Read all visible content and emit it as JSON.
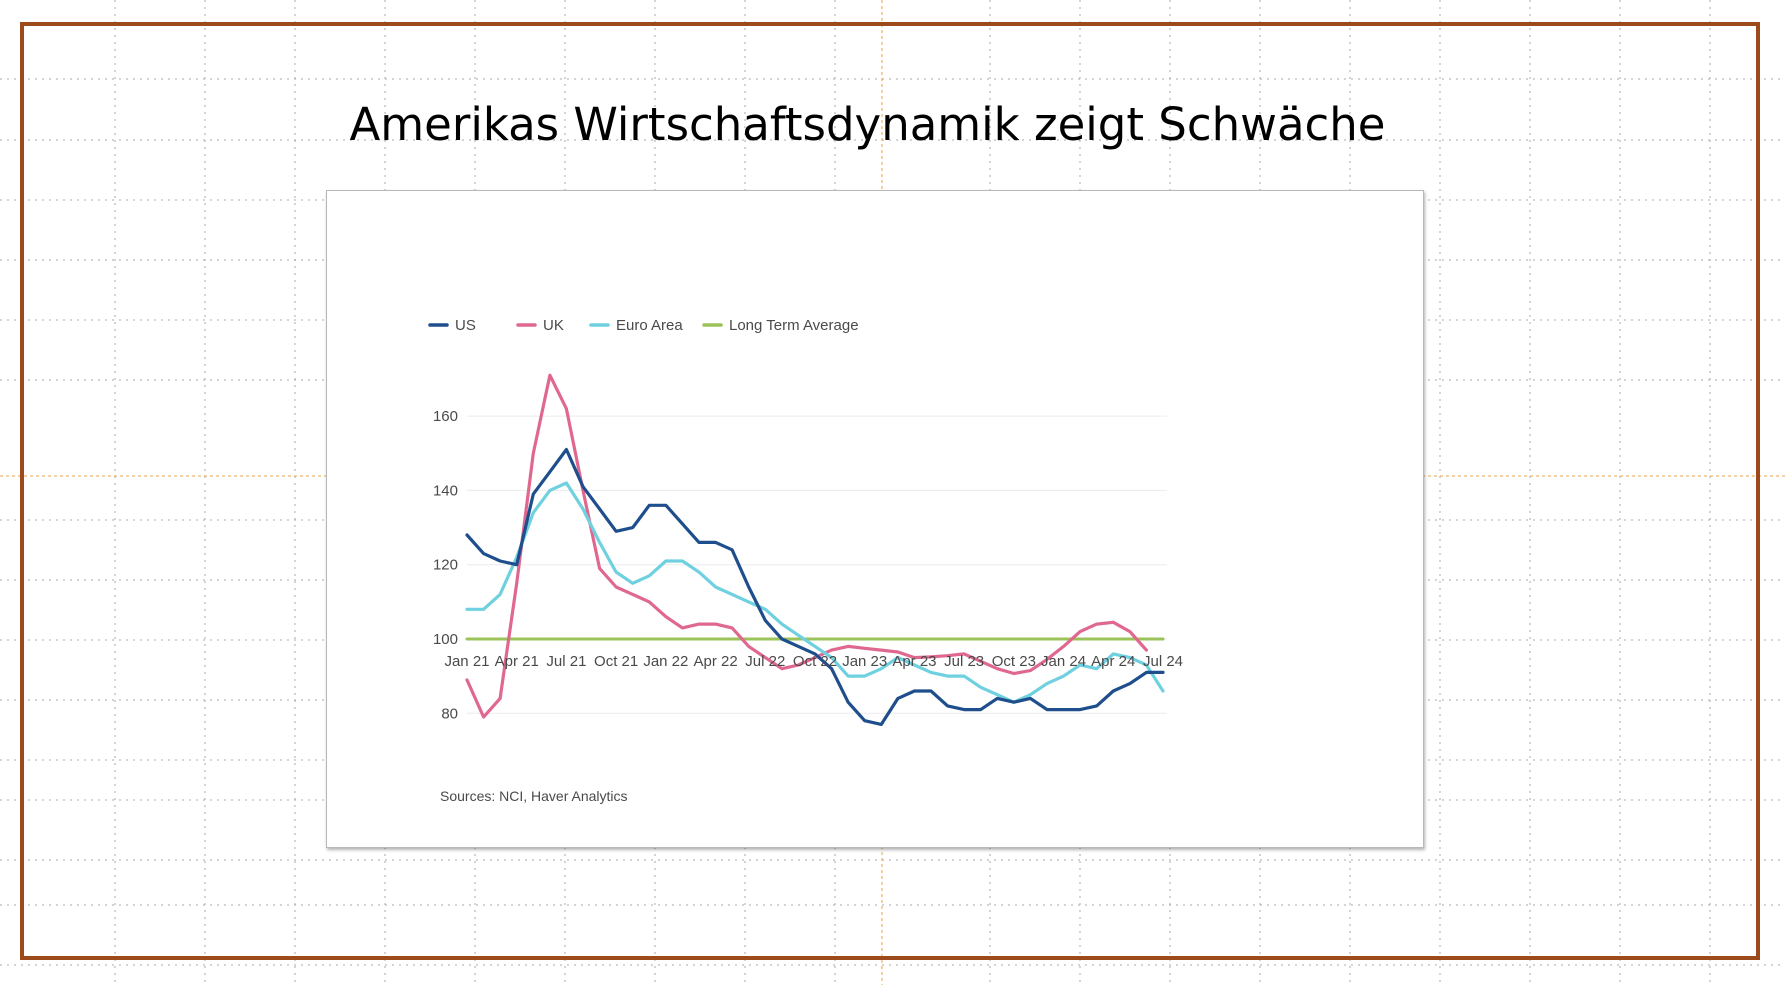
{
  "slide": {
    "title": "Amerikas Wirtschaftsdynamik zeigt Schwäche",
    "frame_color": "#9c4a1c"
  },
  "chart_data": {
    "type": "line",
    "title": "",
    "xlabel": "",
    "ylabel": "",
    "source": "Sources: NCI, Haver Analytics",
    "ylim": [
      75,
      170
    ],
    "yticks": [
      80,
      100,
      120,
      140,
      160
    ],
    "grid": "horizontal",
    "legend_position": "top-left",
    "x": [
      "Jan 21",
      "Feb 21",
      "Mar 21",
      "Apr 21",
      "May 21",
      "Jun 21",
      "Jul 21",
      "Aug 21",
      "Sep 21",
      "Oct 21",
      "Nov 21",
      "Dec 21",
      "Jan 22",
      "Feb 22",
      "Mar 22",
      "Apr 22",
      "May 22",
      "Jun 22",
      "Jul 22",
      "Aug 22",
      "Sep 22",
      "Oct 22",
      "Nov 22",
      "Dec 22",
      "Jan 23",
      "Feb 23",
      "Mar 23",
      "Apr 23",
      "May 23",
      "Jun 23",
      "Jul 23",
      "Aug 23",
      "Sep 23",
      "Oct 23",
      "Nov 23",
      "Dec 23",
      "Jan 24",
      "Feb 24",
      "Mar 24",
      "Apr 24",
      "May 24",
      "Jun 24",
      "Jul 24"
    ],
    "xticks": [
      "Jan 21",
      "Apr 21",
      "Jul 21",
      "Oct 21",
      "Jan 22",
      "Apr 22",
      "Jul 22",
      "Oct 22",
      "Jan 23",
      "Apr 23",
      "Jul 23",
      "Oct 23",
      "Jan 24",
      "Apr 24",
      "Jul 24"
    ],
    "series": [
      {
        "name": "US",
        "color": "#1f4e8c",
        "values": [
          128,
          123,
          121,
          120,
          139,
          145,
          151,
          141,
          135,
          129,
          130,
          136,
          136,
          131,
          126,
          126,
          124,
          114,
          105,
          100,
          98,
          96,
          92,
          83,
          78,
          77,
          84,
          86,
          86,
          82,
          81,
          81,
          84,
          83,
          84,
          81,
          81,
          81,
          82,
          86,
          88,
          91,
          91
        ]
      },
      {
        "name": "UK",
        "color": "#e0688f",
        "values": [
          89,
          79,
          84,
          115,
          150,
          171,
          162,
          140,
          119,
          114,
          112,
          110,
          106,
          103,
          104,
          104,
          103,
          98,
          95,
          92,
          93,
          95,
          97,
          98,
          97.5,
          97,
          96.5,
          95,
          95.2,
          95.5,
          96,
          94,
          92,
          90.7,
          91.5,
          94.5,
          98,
          102,
          104,
          104.5,
          102,
          97,
          null
        ]
      },
      {
        "name": "Euro Area",
        "color": "#6fd0e0",
        "values": [
          108,
          108,
          112,
          122,
          134,
          140,
          142,
          135,
          126,
          118,
          115,
          117,
          121,
          121,
          118,
          114,
          112,
          110,
          108,
          104,
          101,
          98,
          95,
          90,
          90,
          92,
          95,
          93,
          91,
          90,
          90,
          87,
          85,
          83,
          85,
          88,
          90,
          93,
          92,
          96,
          95,
          93,
          86
        ]
      },
      {
        "name": "Long Term Average",
        "color": "#9bc35a",
        "values": [
          100,
          100,
          100,
          100,
          100,
          100,
          100,
          100,
          100,
          100,
          100,
          100,
          100,
          100,
          100,
          100,
          100,
          100,
          100,
          100,
          100,
          100,
          100,
          100,
          100,
          100,
          100,
          100,
          100,
          100,
          100,
          100,
          100,
          100,
          100,
          100,
          100,
          100,
          100,
          100,
          100,
          100,
          100
        ]
      }
    ]
  }
}
